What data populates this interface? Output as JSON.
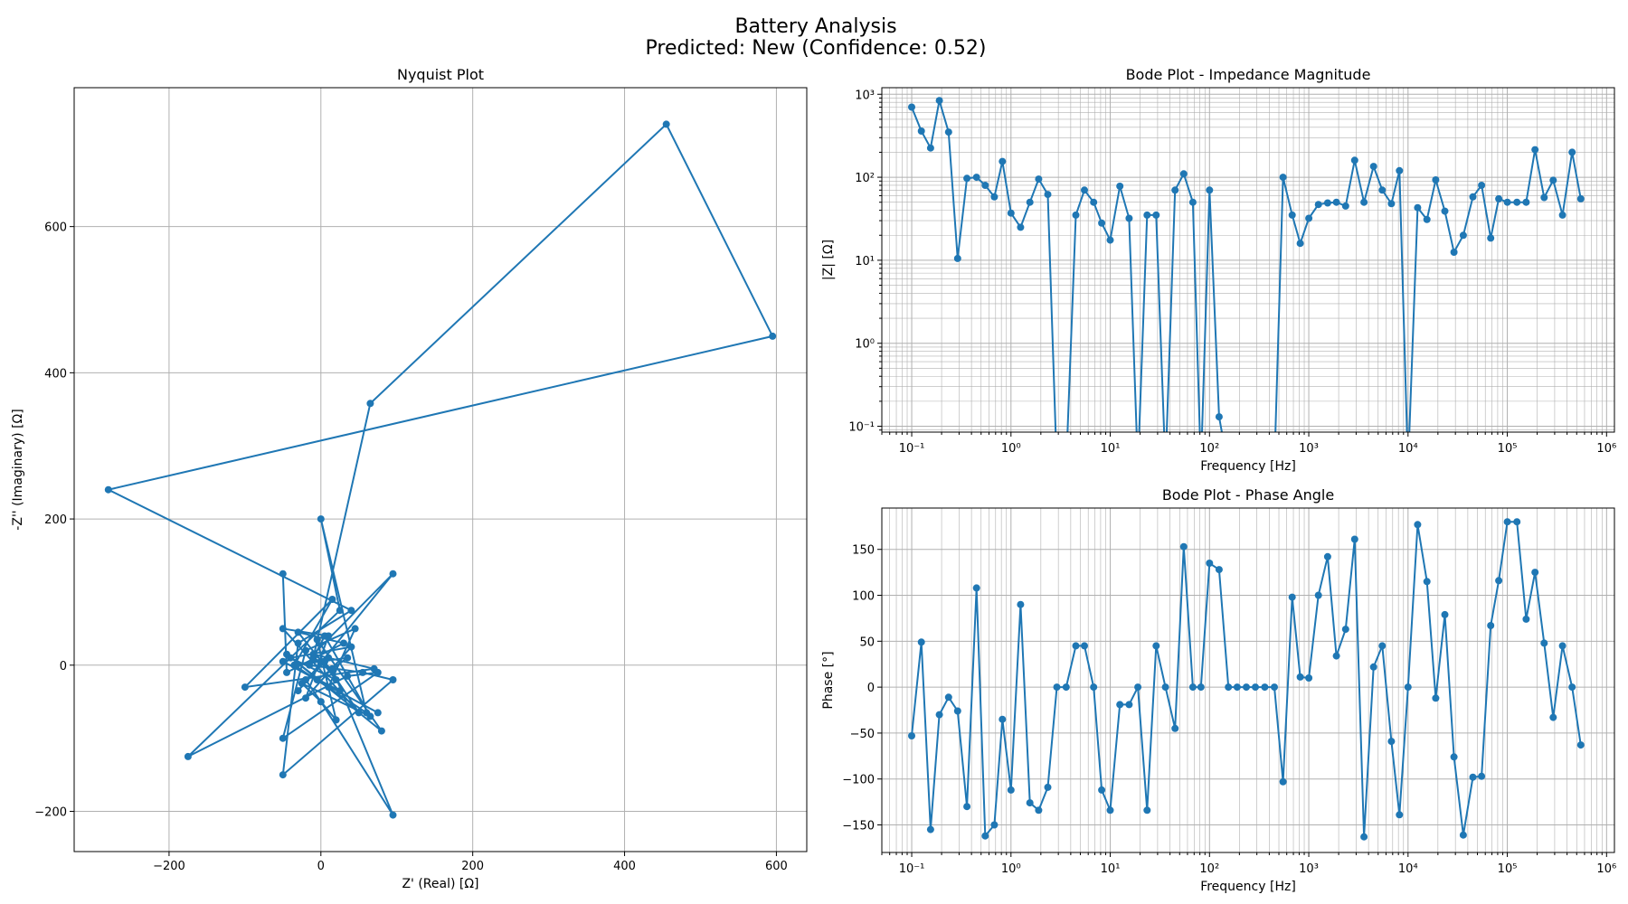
{
  "suptitle": {
    "line1": "Battery Analysis",
    "line2": "Predicted: New (Confidence: 0.52)"
  },
  "chart_data": [
    {
      "id": "nyquist",
      "type": "line",
      "title": "Nyquist Plot",
      "xlabel": "Z' (Real) [Ω]",
      "ylabel": "-Z'' (Imaginary) [Ω]",
      "xlim": [
        -325,
        640
      ],
      "ylim": [
        -255,
        790
      ],
      "xticks": [
        -200,
        0,
        200,
        400,
        600
      ],
      "yticks": [
        -200,
        0,
        200,
        400,
        600
      ],
      "grid": true,
      "color": "#1f77b4",
      "markers": true,
      "x": [
        -50,
        -45,
        30,
        -30,
        20,
        -40,
        40,
        -20,
        10,
        -50,
        50,
        5,
        -30,
        95,
        -10,
        70,
        -100,
        15,
        -35,
        60,
        0,
        25,
        -175,
        35,
        75,
        -50,
        -20,
        45,
        10,
        -45,
        80,
        -5,
        20,
        0,
        -25,
        65,
        5,
        -15,
        55,
        95,
        -50,
        -30,
        40,
        -280,
        595,
        455,
        65,
        -10,
        15,
        95,
        0,
        -20,
        10,
        -35,
        35,
        -5,
        25,
        -50,
        75
      ],
      "y": [
        125,
        -10,
        30,
        45,
        -20,
        10,
        25,
        -45,
        40,
        50,
        -65,
        5,
        -35,
        125,
        15,
        -5,
        -30,
        90,
        0,
        -65,
        200,
        75,
        -125,
        -15,
        -10,
        -100,
        20,
        50,
        -30,
        15,
        -90,
        35,
        -75,
        -50,
        -25,
        -70,
        40,
        0,
        -10,
        -20,
        -150,
        30,
        75,
        240,
        450,
        740,
        358,
        10,
        -5,
        -205,
        -50,
        -20,
        10,
        0,
        10,
        -20,
        -35,
        5,
        -65
      ]
    },
    {
      "id": "bode_mag",
      "type": "line",
      "title": "Bode Plot - Impedance Magnitude",
      "xlabel": "Frequency [Hz]",
      "ylabel": "|Z| [Ω]",
      "xscale": "log",
      "yscale": "log",
      "xlim": [
        0.05,
        1200000
      ],
      "ylim": [
        0.085,
        1200
      ],
      "grid": true,
      "color": "#1f77b4",
      "markers": true,
      "x": [
        0.1,
        0.125,
        0.155,
        0.19,
        0.235,
        0.29,
        0.36,
        0.45,
        0.55,
        0.68,
        0.82,
        1.0,
        1.25,
        1.55,
        1.9,
        2.35,
        2.9,
        3.6,
        4.5,
        5.5,
        6.8,
        8.2,
        10,
        12.5,
        15.5,
        19,
        23.5,
        29,
        36,
        45,
        55,
        68,
        82,
        100,
        125,
        155,
        190,
        235,
        290,
        360,
        450,
        550,
        680,
        820,
        1000,
        1250,
        1550,
        1900,
        2350,
        2900,
        3600,
        4500,
        5500,
        6800,
        8200,
        10000,
        12500,
        15500,
        19000,
        23500,
        29000,
        36000,
        45000,
        55000,
        68000,
        82000,
        100000,
        125000,
        155000,
        190000,
        235000,
        290000,
        360000,
        450000,
        550000
      ],
      "y": [
        700,
        360,
        225,
        840,
        350,
        10.5,
        97,
        100,
        80,
        58,
        155,
        37,
        25,
        50,
        95,
        62,
        null,
        null,
        35,
        70,
        50,
        28,
        17.5,
        78,
        32,
        null,
        35,
        35,
        null,
        70,
        110,
        50,
        null,
        70,
        0.13,
        null,
        null,
        null,
        null,
        null,
        null,
        100,
        35,
        16,
        32,
        47,
        49,
        50,
        45,
        160,
        50,
        135,
        70,
        48,
        120,
        null,
        43,
        31,
        93,
        39,
        12.5,
        20,
        58,
        80,
        18.5,
        55,
        50,
        50,
        50,
        215,
        57,
        92,
        35,
        200,
        55
      ],
      "dips_to_zero_at": [
        2.35,
        4.5,
        15.5,
        23.5,
        29,
        45,
        68,
        100,
        550,
        8200,
        12500
      ]
    },
    {
      "id": "bode_phase",
      "type": "line",
      "title": "Bode Plot - Phase Angle",
      "xlabel": "Frequency [Hz]",
      "ylabel": "Phase [°]",
      "xscale": "log",
      "xlim": [
        0.05,
        1200000
      ],
      "ylim": [
        -180,
        195
      ],
      "yticks": [
        -150,
        -100,
        -50,
        0,
        50,
        100,
        150
      ],
      "grid": true,
      "color": "#1f77b4",
      "markers": true,
      "x": [
        0.1,
        0.125,
        0.155,
        0.19,
        0.235,
        0.29,
        0.36,
        0.45,
        0.55,
        0.68,
        0.82,
        1.0,
        1.25,
        1.55,
        1.9,
        2.35,
        2.9,
        3.6,
        4.5,
        5.5,
        6.8,
        8.2,
        10,
        12.5,
        15.5,
        19,
        23.5,
        29,
        36,
        45,
        55,
        68,
        82,
        100,
        125,
        155,
        190,
        235,
        290,
        360,
        450,
        550,
        680,
        820,
        1000,
        1250,
        1550,
        1900,
        2350,
        2900,
        3600,
        4500,
        5500,
        6800,
        8200,
        10000,
        12500,
        15500,
        19000,
        23500,
        29000,
        36000,
        45000,
        55000,
        68000,
        82000,
        100000,
        125000,
        155000,
        190000,
        235000,
        290000,
        360000,
        450000,
        550000
      ],
      "y": [
        -53,
        49,
        -155,
        -30,
        -11,
        -26,
        -130,
        108,
        -162,
        -150,
        -35,
        -112,
        90,
        -126,
        -134,
        -109,
        0,
        0,
        45,
        45,
        0,
        -112,
        -134,
        -19,
        -19,
        0,
        -134,
        45,
        0,
        -45,
        153,
        0,
        0,
        135,
        128,
        0,
        0,
        0,
        0,
        0,
        0,
        -103,
        98,
        11,
        10,
        100,
        142,
        34,
        63,
        161,
        -163,
        22,
        45,
        -59,
        -139,
        0,
        177,
        115,
        -12,
        79,
        -76,
        -161,
        -98,
        -97,
        67,
        116,
        180,
        180,
        74,
        125,
        48,
        -33,
        45,
        0,
        -63
      ]
    }
  ]
}
